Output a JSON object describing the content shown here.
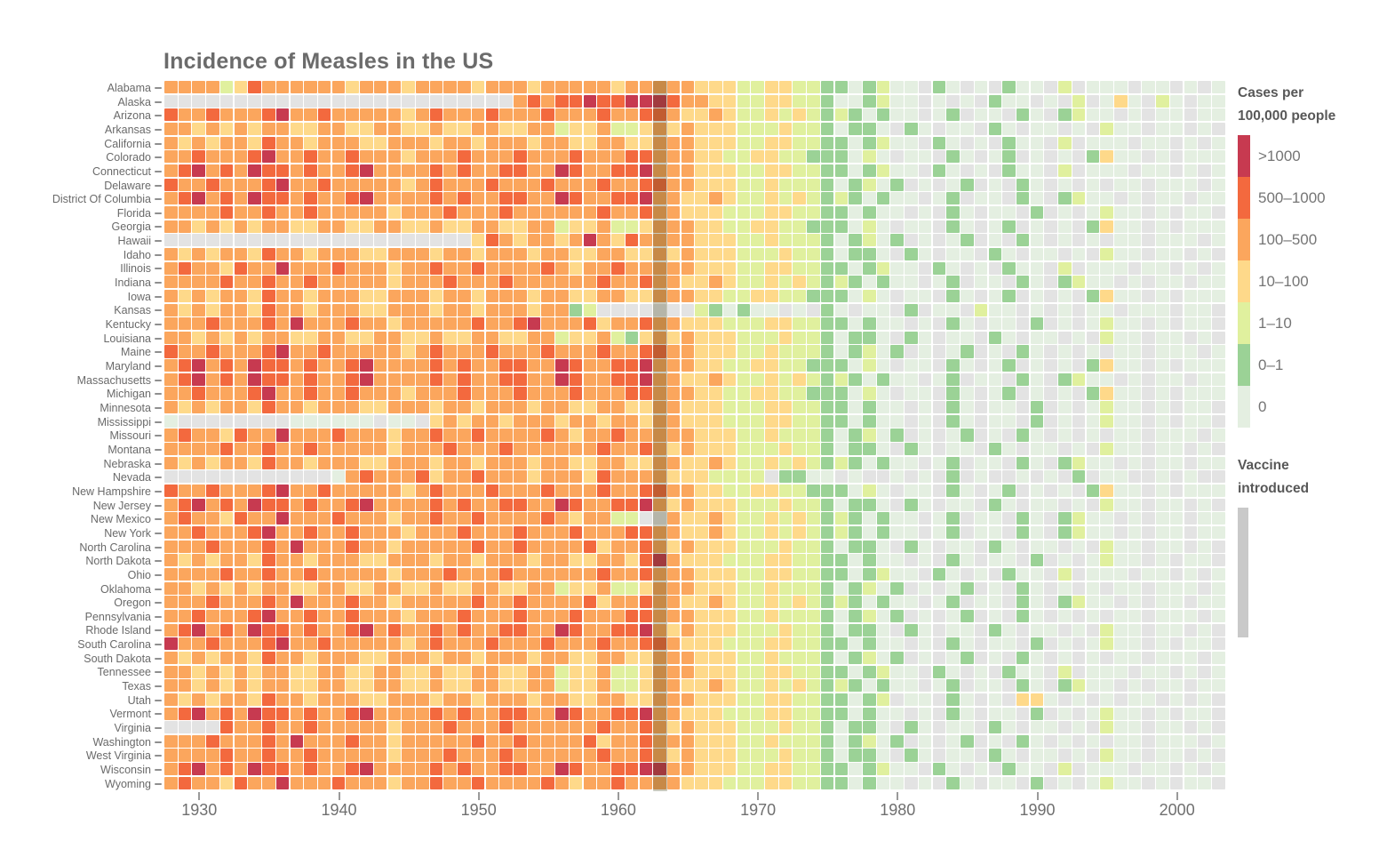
{
  "title": "Incidence of Measles in the US",
  "legend": {
    "title_line1": "Cases per",
    "title_line2": "100,000 people",
    "bins": [
      {
        "key": "6",
        "label": ">1000"
      },
      {
        "key": "5",
        "label": "500–1000"
      },
      {
        "key": "4",
        "label": "100–500"
      },
      {
        "key": "3",
        "label": "10–100"
      },
      {
        "key": "2",
        "label": "1–10"
      },
      {
        "key": "1",
        "label": "0–1"
      },
      {
        "key": "0",
        "label": "0"
      }
    ]
  },
  "annotation": {
    "line1": "Vaccine",
    "line2": "introduced",
    "year": 1963
  },
  "x_axis": {
    "ticks": [
      1930,
      1940,
      1950,
      1960,
      1970,
      1980,
      1990,
      2000
    ]
  },
  "colors": {
    "6": "#c73a50",
    "5": "#f3693e",
    "4": "#fba65d",
    "3": "#fed98a",
    "2": "#e0f09e",
    "1": "#9bd296",
    "0": "#e4efe1",
    ".": "#e3e3e3",
    "vaccine_overlay": "rgba(60,58,14,0.27)",
    "vaccine_bar": "#c9c9c9",
    "tick": "#9a9a9a"
  },
  "chart_data": {
    "type": "heatmap",
    "title": "Incidence of Measles in the US",
    "unit": "cases per 100,000 people",
    "x_start_year": 1928,
    "x_end_year": 2003,
    "vaccine_year": 1963,
    "legend_position": "right",
    "value_encoding": {
      "6": ">1000",
      "5": "500–1000",
      "4": "100–500",
      "3": "10–100",
      "2": "1–10",
      "1": "0–1",
      "0": "0",
      ".": "no data"
    },
    "rows": [
      {
        "state": "Alabama",
        "values": "444423544444434443444434443444443444443332233221101200.10.0.100.2.000.00.0.0"
      },
      {
        "state": "Alaska",
        "values": ".........................45455655666544332233221001200.0.0.100.0.2.030.20.00"
      },
      {
        "state": "Arizona",
        "values": "544544456445444443454445444544454455433432232321210100.01.00.10.1200.0.00.00"
      },
      {
        "state": "Arkansas",
        "values": "4434343443344334433433443344233422343433322232210110.10.00.10.00.0.200.00.0."
      },
      {
        "state": "California",
        "values": "434344354434443344434434443443344334443332233221101200.10.0.100.2.000.00.0.0"
      },
      {
        "state": "Colorado",
        "values": "4454445644544544434445444544454445544433223322111020.00.10.01.0.0.1300.0.000"
      },
      {
        "state": "Connecticut",
        "values": "456454655454456444454544554465445564443332233221101200.10.0.100.2.000.00.0.0"
      },
      {
        "state": "Delaware",
        "values": "54454445644544444345444544454445445544333223222101201.0.01.0.10.0.0.00.000.0"
      },
      {
        "state": "District Of Columbia",
        "values": "456454655454456444454544554465445564433432232321210100.01.00.10.1200.0.00.00"
      },
      {
        "state": "Florida",
        "values": "44445445445444443444544454444445445443332223322110100.0.10.00.1.0.0200.0.00."
      },
      {
        "state": "Georgia",
        "values": "4434343443344334433433443344233422344433223322111020.00.10.01.0.0.1300.0.000"
      },
      {
        "state": "Hawaii",
        "values": "......................3543443464354444333223222101201.0.01.0.10.0.0.00.000.0"
      },
      {
        "state": "Idaho",
        "values": "4343443544344433444344344434433443343433322232210110.10.00.10.00.0.200.00.0."
      },
      {
        "state": "Illinois",
        "values": "454435446444544434454454444543445444443332233221101200.10.0.100.2.000.00.0.0"
      },
      {
        "state": "Indiana",
        "values": "444454454454444434445444544444454454433432232321210100.01.00.10.1200.0.00.00"
      },
      {
        "state": "Iowa",
        "values": "4343443544344433444344344434433443344433223322111020.00.10.01.0.0.1300.0.000"
      },
      {
        "state": "Kansas",
        "values": "4343443544344433444344344434412.......210100.0.10.00.1.00.200.0.0.00.000.00."
      },
      {
        "state": "Kentucky",
        "values": "44454445464445443444445445644453445443332223322110100.0.10.00.1.0.0200.0.00."
      },
      {
        "state": "Louisiana",
        "values": "4434343443344334433433443344233421343433322232210110.10.00.10.00.0.200.00.0."
      },
      {
        "state": "Maine",
        "values": "54454445644544444345444544454445445544333223222101201.0.01.0.10.0.0.00.000.0"
      },
      {
        "state": "Maryland",
        "values": "4564546554544564444545445544654455644433223322111020.00.10.01.0.0.1300.0.000"
      },
      {
        "state": "Massachusetts",
        "values": "456454655454456444454544554465445564433432232321210100.01.00.10.1200.0.00.00"
      },
      {
        "state": "Michigan",
        "values": "4454445644544544434445444544454445544433223322111020.00.10.01.0.0.1300.0.000"
      },
      {
        "state": "Minnesota",
        "values": "43434435443444334443443444344334433443332223322110100.0.10.00.1.0.0200.0.00."
      },
      {
        "state": "Mississippi",
        "values": "0........000000.00.3434434443443443443332223322110100.0.10.00.1.0.0200.0.00."
      },
      {
        "state": "Missouri",
        "values": "45443544644454443445445444454344544444333223222101201.0.01.0.10.0.0.00.000.0"
      },
      {
        "state": "Montana",
        "values": "4444544544544444344454445444444544543433322232210110.10.00.10.00.0.200.00.0."
      },
      {
        "state": "Nebraska",
        "values": "434344354434443344434434443443344334433432232321210100.01.00.10.1200.0.00.00"
      },
      {
        "state": "Nevada",
        "values": "............0454445344544434443544443332222.1100.0..0.0.1.0..0.0.1.00..0.0.."
      },
      {
        "state": "New Hampshire",
        "values": "5445444564454444434544454445444544554433223322111020.00.10.01.0.0.1300.0.000"
      },
      {
        "state": "New Jersey",
        "values": "4564546554544564444545445544654455643433322232210110.10.00.10.00.0.200.00.0."
      },
      {
        "state": "New Mexico",
        "values": "4544354464445444344544544445434422..433432232321210100.01.00.10.1200.0.00.00"
      },
      {
        "state": "New York",
        "values": "445444564454454443444544454445444554433432232321210100.01.00.10.1200.0.00.00"
      },
      {
        "state": "North Carolina",
        "values": "4445444546444544344444544544445344543433322232210110.10.00.10.00.0.200.00.0."
      },
      {
        "state": "North Dakota",
        "values": "43434435443444334443443444344334435643332223322110100.0.10.00.1.0.0200.0.00."
      },
      {
        "state": "Ohio",
        "values": "444454454454444434445444544444454454443332233221101200.10.0.100.2.000.00.0.0"
      },
      {
        "state": "Oklahoma",
        "values": "44343434433443344334334433442334223444333223222101201.0.01.0.10.0.0.00.000.0"
      },
      {
        "state": "Oregon",
        "values": "444544454644454434444454454444534454433432232321210100.01.00.10.1200.0.00.00"
      },
      {
        "state": "Pennsylvania",
        "values": "44544456445445444344454445444544455444333223222101201.0.01.0.10.0.0.00.000.0"
      },
      {
        "state": "Rhode Island",
        "values": "4564546554544564544545445544654455643433322232210110.10.00.10.00.0.200.00.0."
      },
      {
        "state": "South Carolina",
        "values": "64454445644544444345444544454445445543332223322110100.0.10.00.1.0.0200.0.00."
      },
      {
        "state": "South Dakota",
        "values": "43434435443444334443443444344334433444333223222101201.0.01.0.10.0.0.00.000.0"
      },
      {
        "state": "Tennessee",
        "values": "443434344334433443343344334423342234443332233221101200.10.0.100.2.000.00.0.0"
      },
      {
        "state": "Texas",
        "values": "443434344334433443343344334423342234433432232321210100.01.00.10.1200.0.00.00"
      },
      {
        "state": "Utah",
        "values": "4343443544344433444344344434433443344433322332211012.00.10.0.330.0.0.00.0.0."
      },
      {
        "state": "Vermont",
        "values": "45645465545445644445454455446544556443332223322110100.0.10.00.1.0.0200.0.00."
      },
      {
        "state": "Virginia",
        "values": "....544544544444344454445444444544543433322232210110.10.00.10.00.0.200.00.0."
      },
      {
        "state": "Washington",
        "values": "44454445464445443444445445444453445444333223222101201.0.01.0.10.0.0.00.000.0"
      },
      {
        "state": "West Virginia",
        "values": "4444544544544444344454445444444544543433322232210110.10.00.10.00.0.200.00.0."
      },
      {
        "state": "Wisconsin",
        "values": "456454655454456444454544554465445566443332233221101200.10.0.100.2.000.00.0.0"
      },
      {
        "state": "Wyoming",
        "values": "45443544644454443445445444454344544443332223322110100.0.10.00.1.0.0200.0.00."
      }
    ]
  }
}
